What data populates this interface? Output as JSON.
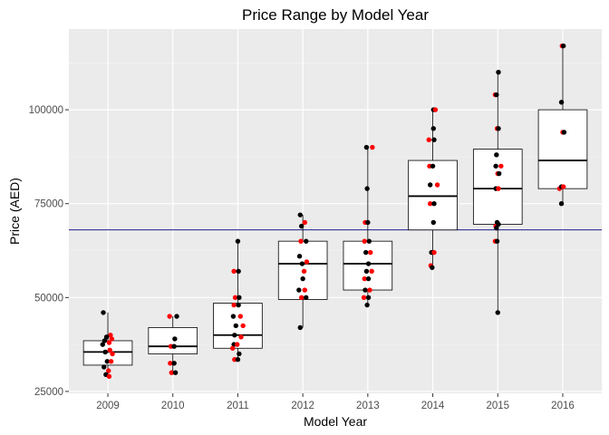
{
  "chart_data": {
    "type": "boxplot",
    "title": "Price Range by Model Year",
    "xlabel": "Model Year",
    "ylabel": "Price (AED)",
    "categories": [
      "2009",
      "2010",
      "2011",
      "2012",
      "2013",
      "2014",
      "2015",
      "2016"
    ],
    "y_ticks": [
      25000,
      50000,
      75000,
      100000
    ],
    "y_tick_labels": [
      "25000",
      "50000",
      "75000",
      "100000"
    ],
    "ylim": [
      24500,
      121500
    ],
    "grid": true,
    "reference_line": {
      "y": 68000,
      "color": "#000080"
    },
    "boxes": [
      {
        "category": "2009",
        "min": 29000,
        "q1": 32000,
        "median": 35500,
        "q3": 38500,
        "max": 46000
      },
      {
        "category": "2010",
        "min": 30000,
        "q1": 35000,
        "median": 37000,
        "q3": 42000,
        "max": 45000
      },
      {
        "category": "2011",
        "min": 33500,
        "q1": 36500,
        "median": 40000,
        "q3": 48500,
        "max": 65000
      },
      {
        "category": "2012",
        "min": 42000,
        "q1": 49500,
        "median": 59000,
        "q3": 65000,
        "max": 72000
      },
      {
        "category": "2013",
        "min": 48000,
        "q1": 52000,
        "median": 59000,
        "q3": 65000,
        "max": 90000
      },
      {
        "category": "2014",
        "min": 58000,
        "q1": 68000,
        "median": 77000,
        "q3": 86500,
        "max": 100000
      },
      {
        "category": "2015",
        "min": 46000,
        "q1": 69500,
        "median": 79000,
        "q3": 89500,
        "max": 110000
      },
      {
        "category": "2016",
        "min": 75000,
        "q1": 79000,
        "median": 86500,
        "q3": 100000,
        "max": 117000
      }
    ],
    "point_colors": {
      "black": "#000000",
      "red": "#ff0000"
    },
    "points": [
      {
        "category": "2009",
        "jitter": -0.07,
        "y": 46000,
        "color": "black"
      },
      {
        "category": "2009",
        "jitter": 0.04,
        "y": 40000,
        "color": "red"
      },
      {
        "category": "2009",
        "jitter": -0.02,
        "y": 39500,
        "color": "black"
      },
      {
        "category": "2009",
        "jitter": 0.06,
        "y": 39000,
        "color": "red"
      },
      {
        "category": "2009",
        "jitter": -0.05,
        "y": 38500,
        "color": "black"
      },
      {
        "category": "2009",
        "jitter": 0.02,
        "y": 38000,
        "color": "red"
      },
      {
        "category": "2009",
        "jitter": -0.08,
        "y": 37500,
        "color": "black"
      },
      {
        "category": "2009",
        "jitter": 0.03,
        "y": 36000,
        "color": "red"
      },
      {
        "category": "2009",
        "jitter": -0.04,
        "y": 35500,
        "color": "black"
      },
      {
        "category": "2009",
        "jitter": 0.07,
        "y": 35000,
        "color": "red"
      },
      {
        "category": "2009",
        "jitter": -0.01,
        "y": 33000,
        "color": "black"
      },
      {
        "category": "2009",
        "jitter": 0.05,
        "y": 33000,
        "color": "red"
      },
      {
        "category": "2009",
        "jitter": -0.06,
        "y": 31500,
        "color": "black"
      },
      {
        "category": "2009",
        "jitter": 0.01,
        "y": 30500,
        "color": "red"
      },
      {
        "category": "2009",
        "jitter": -0.03,
        "y": 29500,
        "color": "black"
      },
      {
        "category": "2009",
        "jitter": 0.02,
        "y": 29000,
        "color": "red"
      },
      {
        "category": "2010",
        "jitter": -0.05,
        "y": 45000,
        "color": "red"
      },
      {
        "category": "2010",
        "jitter": 0.06,
        "y": 45000,
        "color": "black"
      },
      {
        "category": "2010",
        "jitter": 0.03,
        "y": 39000,
        "color": "black"
      },
      {
        "category": "2010",
        "jitter": -0.03,
        "y": 37000,
        "color": "red"
      },
      {
        "category": "2010",
        "jitter": 0.02,
        "y": 37000,
        "color": "black"
      },
      {
        "category": "2010",
        "jitter": -0.04,
        "y": 32500,
        "color": "red"
      },
      {
        "category": "2010",
        "jitter": 0.02,
        "y": 32500,
        "color": "black"
      },
      {
        "category": "2010",
        "jitter": -0.02,
        "y": 30000,
        "color": "red"
      },
      {
        "category": "2010",
        "jitter": 0.04,
        "y": 30000,
        "color": "black"
      },
      {
        "category": "2011",
        "jitter": 0.0,
        "y": 65000,
        "color": "black"
      },
      {
        "category": "2011",
        "jitter": -0.06,
        "y": 57000,
        "color": "red"
      },
      {
        "category": "2011",
        "jitter": 0.01,
        "y": 57000,
        "color": "black"
      },
      {
        "category": "2011",
        "jitter": -0.04,
        "y": 50000,
        "color": "red"
      },
      {
        "category": "2011",
        "jitter": 0.02,
        "y": 50000,
        "color": "black"
      },
      {
        "category": "2011",
        "jitter": -0.06,
        "y": 48000,
        "color": "red"
      },
      {
        "category": "2011",
        "jitter": 0.01,
        "y": 48000,
        "color": "black"
      },
      {
        "category": "2011",
        "jitter": -0.07,
        "y": 45000,
        "color": "black"
      },
      {
        "category": "2011",
        "jitter": 0.04,
        "y": 45000,
        "color": "red"
      },
      {
        "category": "2011",
        "jitter": -0.03,
        "y": 42500,
        "color": "black"
      },
      {
        "category": "2011",
        "jitter": 0.08,
        "y": 42500,
        "color": "red"
      },
      {
        "category": "2011",
        "jitter": -0.05,
        "y": 40000,
        "color": "black"
      },
      {
        "category": "2011",
        "jitter": 0.05,
        "y": 39500,
        "color": "red"
      },
      {
        "category": "2011",
        "jitter": -0.06,
        "y": 37500,
        "color": "black"
      },
      {
        "category": "2011",
        "jitter": -0.01,
        "y": 37500,
        "color": "red"
      },
      {
        "category": "2011",
        "jitter": -0.08,
        "y": 36500,
        "color": "red"
      },
      {
        "category": "2011",
        "jitter": 0.02,
        "y": 35000,
        "color": "black"
      },
      {
        "category": "2011",
        "jitter": -0.05,
        "y": 33500,
        "color": "red"
      },
      {
        "category": "2011",
        "jitter": 0.0,
        "y": 33500,
        "color": "black"
      },
      {
        "category": "2012",
        "jitter": -0.04,
        "y": 72000,
        "color": "black"
      },
      {
        "category": "2012",
        "jitter": 0.03,
        "y": 70000,
        "color": "red"
      },
      {
        "category": "2012",
        "jitter": -0.02,
        "y": 69000,
        "color": "black"
      },
      {
        "category": "2012",
        "jitter": -0.03,
        "y": 65000,
        "color": "red"
      },
      {
        "category": "2012",
        "jitter": 0.05,
        "y": 65000,
        "color": "black"
      },
      {
        "category": "2012",
        "jitter": -0.05,
        "y": 61000,
        "color": "black"
      },
      {
        "category": "2012",
        "jitter": 0.06,
        "y": 59500,
        "color": "red"
      },
      {
        "category": "2012",
        "jitter": -0.01,
        "y": 59000,
        "color": "black"
      },
      {
        "category": "2012",
        "jitter": 0.02,
        "y": 57000,
        "color": "red"
      },
      {
        "category": "2012",
        "jitter": 0.0,
        "y": 55000,
        "color": "black"
      },
      {
        "category": "2012",
        "jitter": -0.06,
        "y": 52000,
        "color": "black"
      },
      {
        "category": "2012",
        "jitter": 0.03,
        "y": 52000,
        "color": "red"
      },
      {
        "category": "2012",
        "jitter": -0.02,
        "y": 50000,
        "color": "red"
      },
      {
        "category": "2012",
        "jitter": 0.05,
        "y": 50000,
        "color": "black"
      },
      {
        "category": "2012",
        "jitter": -0.04,
        "y": 42000,
        "color": "black"
      },
      {
        "category": "2013",
        "jitter": -0.02,
        "y": 90000,
        "color": "black"
      },
      {
        "category": "2013",
        "jitter": 0.07,
        "y": 90000,
        "color": "red"
      },
      {
        "category": "2013",
        "jitter": -0.01,
        "y": 79000,
        "color": "black"
      },
      {
        "category": "2013",
        "jitter": -0.04,
        "y": 70000,
        "color": "red"
      },
      {
        "category": "2013",
        "jitter": 0.0,
        "y": 70000,
        "color": "black"
      },
      {
        "category": "2013",
        "jitter": -0.05,
        "y": 65000,
        "color": "red"
      },
      {
        "category": "2013",
        "jitter": 0.02,
        "y": 65000,
        "color": "black"
      },
      {
        "category": "2013",
        "jitter": -0.03,
        "y": 62000,
        "color": "black"
      },
      {
        "category": "2013",
        "jitter": 0.04,
        "y": 62000,
        "color": "red"
      },
      {
        "category": "2013",
        "jitter": 0.01,
        "y": 59000,
        "color": "black"
      },
      {
        "category": "2013",
        "jitter": -0.02,
        "y": 57000,
        "color": "black"
      },
      {
        "category": "2013",
        "jitter": 0.06,
        "y": 57000,
        "color": "red"
      },
      {
        "category": "2013",
        "jitter": -0.05,
        "y": 55000,
        "color": "red"
      },
      {
        "category": "2013",
        "jitter": 0.01,
        "y": 55000,
        "color": "black"
      },
      {
        "category": "2013",
        "jitter": -0.04,
        "y": 52000,
        "color": "black"
      },
      {
        "category": "2013",
        "jitter": 0.03,
        "y": 52000,
        "color": "red"
      },
      {
        "category": "2013",
        "jitter": -0.06,
        "y": 50000,
        "color": "red"
      },
      {
        "category": "2013",
        "jitter": 0.01,
        "y": 50000,
        "color": "black"
      },
      {
        "category": "2013",
        "jitter": -0.01,
        "y": 48000,
        "color": "black"
      },
      {
        "category": "2014",
        "jitter": 0.01,
        "y": 100000,
        "color": "black"
      },
      {
        "category": "2014",
        "jitter": 0.04,
        "y": 100000,
        "color": "red"
      },
      {
        "category": "2014",
        "jitter": 0.01,
        "y": 95000,
        "color": "black"
      },
      {
        "category": "2014",
        "jitter": -0.06,
        "y": 92000,
        "color": "red"
      },
      {
        "category": "2014",
        "jitter": 0.02,
        "y": 92000,
        "color": "black"
      },
      {
        "category": "2014",
        "jitter": -0.05,
        "y": 85000,
        "color": "red"
      },
      {
        "category": "2014",
        "jitter": 0.0,
        "y": 85000,
        "color": "black"
      },
      {
        "category": "2014",
        "jitter": -0.04,
        "y": 80000,
        "color": "black"
      },
      {
        "category": "2014",
        "jitter": 0.07,
        "y": 80000,
        "color": "red"
      },
      {
        "category": "2014",
        "jitter": -0.04,
        "y": 75000,
        "color": "red"
      },
      {
        "category": "2014",
        "jitter": 0.02,
        "y": 75000,
        "color": "black"
      },
      {
        "category": "2014",
        "jitter": 0.01,
        "y": 70000,
        "color": "black"
      },
      {
        "category": "2014",
        "jitter": -0.02,
        "y": 62000,
        "color": "black"
      },
      {
        "category": "2014",
        "jitter": 0.02,
        "y": 62000,
        "color": "red"
      },
      {
        "category": "2014",
        "jitter": -0.03,
        "y": 58500,
        "color": "red"
      },
      {
        "category": "2014",
        "jitter": -0.01,
        "y": 58000,
        "color": "black"
      },
      {
        "category": "2015",
        "jitter": 0.01,
        "y": 110000,
        "color": "black"
      },
      {
        "category": "2015",
        "jitter": -0.04,
        "y": 104000,
        "color": "red"
      },
      {
        "category": "2015",
        "jitter": -0.02,
        "y": 104000,
        "color": "black"
      },
      {
        "category": "2015",
        "jitter": -0.01,
        "y": 95000,
        "color": "red"
      },
      {
        "category": "2015",
        "jitter": 0.01,
        "y": 95000,
        "color": "black"
      },
      {
        "category": "2015",
        "jitter": -0.02,
        "y": 88000,
        "color": "black"
      },
      {
        "category": "2015",
        "jitter": 0.05,
        "y": 85000,
        "color": "red"
      },
      {
        "category": "2015",
        "jitter": -0.03,
        "y": 85000,
        "color": "black"
      },
      {
        "category": "2015",
        "jitter": 0.0,
        "y": 83000,
        "color": "red"
      },
      {
        "category": "2015",
        "jitter": 0.02,
        "y": 83000,
        "color": "black"
      },
      {
        "category": "2015",
        "jitter": -0.03,
        "y": 79000,
        "color": "black"
      },
      {
        "category": "2015",
        "jitter": 0.01,
        "y": 79000,
        "color": "red"
      },
      {
        "category": "2015",
        "jitter": -0.01,
        "y": 70000,
        "color": "black"
      },
      {
        "category": "2015",
        "jitter": -0.03,
        "y": 69000,
        "color": "red"
      },
      {
        "category": "2015",
        "jitter": 0.01,
        "y": 69500,
        "color": "black"
      },
      {
        "category": "2015",
        "jitter": -0.02,
        "y": 68500,
        "color": "black"
      },
      {
        "category": "2015",
        "jitter": -0.04,
        "y": 65000,
        "color": "red"
      },
      {
        "category": "2015",
        "jitter": -0.01,
        "y": 65000,
        "color": "black"
      },
      {
        "category": "2015",
        "jitter": 0.0,
        "y": 46000,
        "color": "black"
      },
      {
        "category": "2016",
        "jitter": -0.01,
        "y": 117000,
        "color": "red"
      },
      {
        "category": "2016",
        "jitter": 0.01,
        "y": 117000,
        "color": "black"
      },
      {
        "category": "2016",
        "jitter": -0.02,
        "y": 102000,
        "color": "black"
      },
      {
        "category": "2016",
        "jitter": 0.0,
        "y": 94000,
        "color": "red"
      },
      {
        "category": "2016",
        "jitter": 0.02,
        "y": 94000,
        "color": "black"
      },
      {
        "category": "2016",
        "jitter": -0.05,
        "y": 79000,
        "color": "red"
      },
      {
        "category": "2016",
        "jitter": -0.02,
        "y": 79500,
        "color": "black"
      },
      {
        "category": "2016",
        "jitter": 0.01,
        "y": 79500,
        "color": "red"
      },
      {
        "category": "2016",
        "jitter": -0.02,
        "y": 75000,
        "color": "black"
      }
    ]
  }
}
